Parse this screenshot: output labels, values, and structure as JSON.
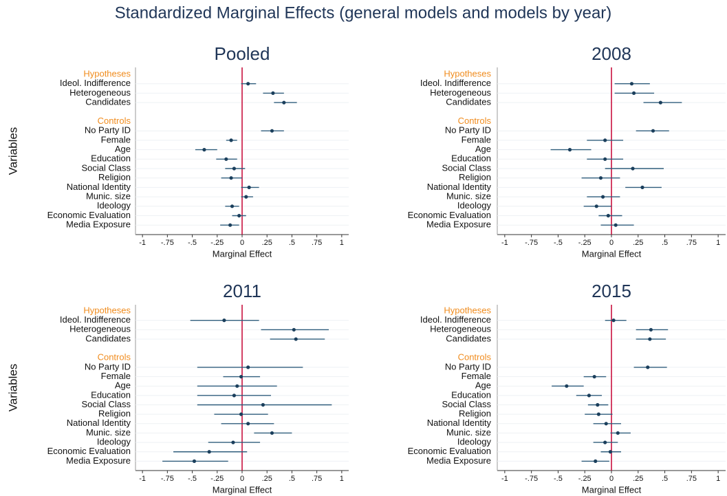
{
  "title": "Standardized Marginal Effects (general models and models by year)",
  "chart_data": [
    {
      "type": "coefplot",
      "title": "Pooled",
      "xlabel": "Marginal Effect",
      "ylabel": "Variables",
      "xlim": [
        -1.07,
        1.07
      ],
      "xticks": [
        -1,
        {
          "value": -0.75,
          "label": "-.75"
        },
        {
          "value": -0.5,
          "label": "-.5"
        },
        {
          "value": -0.25,
          "label": "-.25"
        },
        0,
        {
          "value": 0.25,
          "label": ".25"
        },
        {
          "value": 0.5,
          "label": ".5"
        },
        {
          "value": 0.75,
          "label": ".75"
        },
        1
      ],
      "reference_line": 0,
      "reference_color": "#c8103e",
      "marker_color": "#1b3f5c",
      "header_color": "#f08c1e",
      "groups": [
        {
          "name": "Hypotheses",
          "categories": [
            "Ideol. Indifference",
            "Heterogeneous",
            "Candidates"
          ],
          "values": [
            0.06,
            0.31,
            0.42
          ],
          "lower": [
            -0.01,
            0.21,
            0.32
          ],
          "upper": [
            0.14,
            0.42,
            0.55
          ]
        },
        {
          "name": "Controls",
          "categories": [
            "No Party ID",
            "Female",
            "Age",
            "Education",
            "Social Class",
            "Religion",
            "National Identity",
            "Munic. size",
            "Ideology",
            "Economic Evaluation",
            "Media Exposure"
          ],
          "values": [
            0.3,
            -0.11,
            -0.38,
            -0.16,
            -0.08,
            -0.11,
            0.07,
            0.04,
            -0.1,
            -0.03,
            -0.12
          ],
          "lower": [
            0.19,
            -0.16,
            -0.47,
            -0.26,
            -0.17,
            -0.21,
            -0.01,
            -0.01,
            -0.17,
            -0.1,
            -0.22
          ],
          "upper": [
            0.42,
            -0.05,
            -0.25,
            -0.05,
            0.03,
            0.0,
            0.17,
            0.11,
            -0.03,
            0.04,
            -0.03
          ]
        }
      ]
    },
    {
      "type": "coefplot",
      "title": "2008",
      "xlabel": "Marginal Effect",
      "xlim": [
        -1.07,
        1.07
      ],
      "xticks": [
        -1,
        {
          "value": -0.75,
          "label": "-.75"
        },
        {
          "value": -0.5,
          "label": "-.5"
        },
        {
          "value": -0.25,
          "label": "-.25"
        },
        0,
        {
          "value": 0.25,
          "label": ".25"
        },
        {
          "value": 0.5,
          "label": ".5"
        },
        {
          "value": 0.75,
          "label": ".75"
        },
        1
      ],
      "reference_line": 0,
      "reference_color": "#c8103e",
      "marker_color": "#1b3f5c",
      "header_color": "#f08c1e",
      "groups": [
        {
          "name": "Hypotheses",
          "categories": [
            "Ideol. Indifference",
            "Heterogeneous",
            "Candidates"
          ],
          "values": [
            0.19,
            0.21,
            0.46
          ],
          "lower": [
            0.03,
            0.03,
            0.3
          ],
          "upper": [
            0.36,
            0.4,
            0.66
          ]
        },
        {
          "name": "Controls",
          "categories": [
            "No Party ID",
            "Female",
            "Age",
            "Education",
            "Social Class",
            "Religion",
            "National Identity",
            "Munic. size",
            "Ideology",
            "Economic Evaluation",
            "Media Exposure"
          ],
          "values": [
            0.39,
            -0.06,
            -0.39,
            -0.06,
            0.2,
            -0.1,
            0.29,
            -0.08,
            -0.14,
            -0.03,
            0.04
          ],
          "lower": [
            0.23,
            -0.23,
            -0.57,
            -0.23,
            -0.06,
            -0.28,
            0.13,
            -0.23,
            -0.26,
            -0.12,
            -0.1
          ],
          "upper": [
            0.54,
            0.11,
            -0.19,
            0.11,
            0.49,
            0.08,
            0.47,
            0.08,
            0.0,
            0.1,
            0.21
          ]
        }
      ]
    },
    {
      "type": "coefplot",
      "title": "2011",
      "xlabel": "Marginal Effect",
      "ylabel": "Variables",
      "xlim": [
        -1.07,
        1.07
      ],
      "xticks": [
        -1,
        {
          "value": -0.75,
          "label": "-.75"
        },
        {
          "value": -0.5,
          "label": "-.5"
        },
        {
          "value": -0.25,
          "label": "-.25"
        },
        0,
        {
          "value": 0.25,
          "label": ".25"
        },
        {
          "value": 0.5,
          "label": ".5"
        },
        {
          "value": 0.75,
          "label": ".75"
        },
        1
      ],
      "reference_line": 0,
      "reference_color": "#c8103e",
      "marker_color": "#1b3f5c",
      "header_color": "#f08c1e",
      "groups": [
        {
          "name": "Hypotheses",
          "categories": [
            "Ideol. Indifference",
            "Heterogeneous",
            "Candidates"
          ],
          "values": [
            -0.18,
            0.52,
            0.54
          ],
          "lower": [
            -0.52,
            0.19,
            0.28
          ],
          "upper": [
            0.17,
            0.87,
            0.83
          ]
        },
        {
          "name": "Controls",
          "categories": [
            "No Party ID",
            "Female",
            "Age",
            "Education",
            "Social Class",
            "Religion",
            "National Identity",
            "Munic. size",
            "Ideology",
            "Economic Evaluation",
            "Media Exposure"
          ],
          "values": [
            0.06,
            -0.01,
            -0.05,
            -0.08,
            0.21,
            -0.01,
            0.06,
            0.3,
            -0.09,
            -0.33,
            -0.48
          ],
          "lower": [
            -0.45,
            -0.19,
            -0.45,
            -0.45,
            -0.45,
            -0.28,
            -0.21,
            0.12,
            -0.34,
            -0.69,
            -0.8
          ],
          "upper": [
            0.61,
            0.18,
            0.35,
            0.29,
            0.9,
            0.26,
            0.32,
            0.5,
            0.18,
            0.05,
            -0.14
          ]
        }
      ]
    },
    {
      "type": "coefplot",
      "title": "2015",
      "xlabel": "Marginal Effect",
      "xlim": [
        -1.07,
        1.07
      ],
      "xticks": [
        -1,
        {
          "value": -0.75,
          "label": "-.75"
        },
        {
          "value": -0.5,
          "label": "-.5"
        },
        {
          "value": -0.25,
          "label": "-.25"
        },
        0,
        {
          "value": 0.25,
          "label": ".25"
        },
        {
          "value": 0.5,
          "label": ".5"
        },
        {
          "value": 0.75,
          "label": ".75"
        },
        1
      ],
      "reference_line": 0,
      "reference_color": "#c8103e",
      "marker_color": "#1b3f5c",
      "header_color": "#f08c1e",
      "groups": [
        {
          "name": "Hypotheses",
          "categories": [
            "Ideol. Indifference",
            "Heterogeneous",
            "Candidates"
          ],
          "values": [
            0.02,
            0.37,
            0.36
          ],
          "lower": [
            -0.06,
            0.23,
            0.23
          ],
          "upper": [
            0.14,
            0.53,
            0.51
          ]
        },
        {
          "name": "Controls",
          "categories": [
            "No Party ID",
            "Female",
            "Age",
            "Education",
            "Social Class",
            "Religion",
            "National Identity",
            "Munic. size",
            "Ideology",
            "Economic Evaluation",
            "Media Exposure"
          ],
          "values": [
            0.34,
            -0.16,
            -0.42,
            -0.21,
            -0.13,
            -0.12,
            -0.05,
            0.06,
            -0.06,
            -0.01,
            -0.15
          ],
          "lower": [
            0.21,
            -0.26,
            -0.56,
            -0.33,
            -0.22,
            -0.25,
            -0.17,
            -0.01,
            -0.17,
            -0.1,
            -0.28
          ],
          "upper": [
            0.52,
            -0.05,
            -0.26,
            -0.09,
            -0.03,
            0.01,
            0.09,
            0.18,
            0.06,
            0.09,
            -0.02
          ]
        }
      ]
    }
  ]
}
